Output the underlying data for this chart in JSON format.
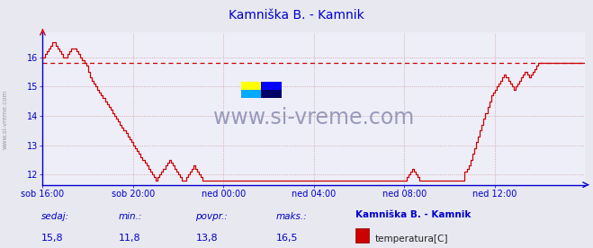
{
  "title": "Kamniška B. - Kamnik",
  "title_color": "#0000cc",
  "bg_color": "#e8e8f0",
  "plot_bg_color": "#eeeef8",
  "line_color": "#cc0000",
  "axis_color": "#0000cc",
  "grid_color_major": "#cc9999",
  "grid_color_minor": "#ddbbbb",
  "dashed_line_value": 15.8,
  "dashed_line_color": "#cc0000",
  "ylim": [
    11.65,
    16.85
  ],
  "yticks": [
    12,
    13,
    14,
    15,
    16
  ],
  "watermark": "www.si-vreme.com",
  "watermark_color": "#9999bb",
  "footer_labels": [
    "sedaj:",
    "min.:",
    "povpr.:",
    "maks.:"
  ],
  "footer_values": [
    "15,8",
    "11,8",
    "13,8",
    "16,5"
  ],
  "footer_series_title": "Kamniška B. - Kamnik",
  "footer_series_label": "temperatura[C]",
  "footer_series_color": "#cc0000",
  "xtick_labels": [
    "sob 16:00",
    "sob 20:00",
    "ned 00:00",
    "ned 04:00",
    "ned 08:00",
    "ned 12:00"
  ],
  "xtick_positions": [
    0,
    48,
    96,
    144,
    192,
    240
  ],
  "total_points": 289,
  "temperature_data": [
    16.0,
    16.1,
    16.2,
    16.3,
    16.4,
    16.5,
    16.5,
    16.4,
    16.3,
    16.2,
    16.1,
    16.0,
    16.0,
    16.1,
    16.2,
    16.3,
    16.3,
    16.3,
    16.2,
    16.1,
    16.0,
    15.9,
    15.8,
    15.7,
    15.5,
    15.3,
    15.2,
    15.1,
    15.0,
    14.9,
    14.8,
    14.7,
    14.6,
    14.5,
    14.4,
    14.3,
    14.2,
    14.1,
    14.0,
    13.9,
    13.8,
    13.7,
    13.6,
    13.5,
    13.4,
    13.3,
    13.2,
    13.1,
    13.0,
    12.9,
    12.8,
    12.7,
    12.6,
    12.5,
    12.4,
    12.3,
    12.2,
    12.1,
    12.0,
    11.9,
    11.8,
    11.9,
    12.0,
    12.1,
    12.2,
    12.3,
    12.4,
    12.5,
    12.4,
    12.3,
    12.2,
    12.1,
    12.0,
    11.9,
    11.8,
    11.8,
    11.9,
    12.0,
    12.1,
    12.2,
    12.3,
    12.2,
    12.1,
    12.0,
    11.9,
    11.8,
    11.8,
    11.8,
    11.8,
    11.8,
    11.8,
    11.8,
    11.8,
    11.8,
    11.8,
    11.8,
    11.8,
    11.8,
    11.8,
    11.8,
    11.8,
    11.8,
    11.8,
    11.8,
    11.8,
    11.8,
    11.8,
    11.8,
    11.8,
    11.8,
    11.8,
    11.8,
    11.8,
    11.8,
    11.8,
    11.8,
    11.8,
    11.8,
    11.8,
    11.8,
    11.8,
    11.8,
    11.8,
    11.8,
    11.8,
    11.8,
    11.8,
    11.8,
    11.8,
    11.8,
    11.8,
    11.8,
    11.8,
    11.8,
    11.8,
    11.8,
    11.8,
    11.8,
    11.8,
    11.8,
    11.8,
    11.8,
    11.8,
    11.8,
    11.8,
    11.8,
    11.8,
    11.8,
    11.8,
    11.8,
    11.8,
    11.8,
    11.8,
    11.8,
    11.8,
    11.8,
    11.8,
    11.8,
    11.8,
    11.8,
    11.8,
    11.8,
    11.8,
    11.8,
    11.8,
    11.8,
    11.8,
    11.8,
    11.8,
    11.8,
    11.8,
    11.8,
    11.8,
    11.8,
    11.8,
    11.8,
    11.8,
    11.8,
    11.8,
    11.8,
    11.8,
    11.8,
    11.8,
    11.8,
    11.8,
    11.8,
    11.8,
    11.8,
    11.8,
    11.8,
    11.8,
    11.8,
    11.8,
    11.9,
    12.0,
    12.1,
    12.2,
    12.1,
    12.0,
    11.9,
    11.8,
    11.8,
    11.8,
    11.8,
    11.8,
    11.8,
    11.8,
    11.8,
    11.8,
    11.8,
    11.8,
    11.8,
    11.8,
    11.8,
    11.8,
    11.8,
    11.8,
    11.8,
    11.8,
    11.8,
    11.8,
    11.8,
    11.8,
    11.8,
    12.1,
    12.2,
    12.3,
    12.5,
    12.7,
    12.9,
    13.1,
    13.3,
    13.5,
    13.7,
    13.9,
    14.1,
    14.3,
    14.5,
    14.7,
    14.8,
    14.9,
    15.0,
    15.1,
    15.2,
    15.3,
    15.4,
    15.3,
    15.2,
    15.1,
    15.0,
    14.9,
    15.0,
    15.1,
    15.2,
    15.3,
    15.4,
    15.5,
    15.4,
    15.3,
    15.4,
    15.5,
    15.6,
    15.7,
    15.8,
    15.8,
    15.8,
    15.8,
    15.8,
    15.8,
    15.8,
    15.8,
    15.8,
    15.8,
    15.8,
    15.8,
    15.8,
    15.8,
    15.8,
    15.8,
    15.8,
    15.8,
    15.8,
    15.8,
    15.8,
    15.8,
    15.8,
    15.8,
    15.8,
    15.8,
    15.8,
    15.8
  ]
}
